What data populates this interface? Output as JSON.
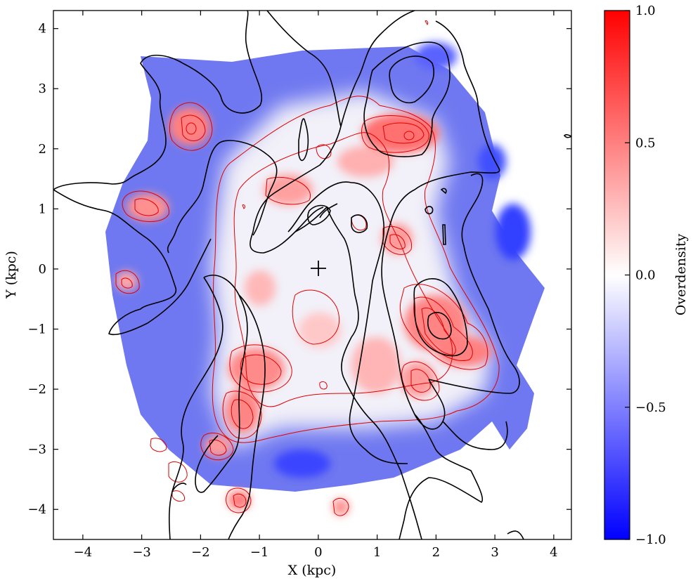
{
  "chart_data": {
    "type": "heatmap",
    "xlabel": "X (kpc)",
    "ylabel": "Y (kpc)",
    "xlim": [
      -4.5,
      4.3
    ],
    "ylim": [
      -4.5,
      4.3
    ],
    "x_ticks": [
      -4,
      -3,
      -2,
      -1,
      0,
      1,
      2,
      3,
      4
    ],
    "y_ticks": [
      -4,
      -3,
      -2,
      -1,
      0,
      1,
      2,
      3,
      4
    ],
    "x_tick_labels": [
      "−4",
      "−3",
      "−2",
      "−1",
      "0",
      "1",
      "2",
      "3",
      "4"
    ],
    "y_tick_labels": [
      "−4",
      "−3",
      "−2",
      "−1",
      "0",
      "1",
      "2",
      "3",
      "4"
    ],
    "colorbar": {
      "label": "Overdensity",
      "range": [
        -1.0,
        1.0
      ],
      "ticks": [
        1.0,
        0.5,
        0.0,
        -0.5,
        -1.0
      ],
      "tick_labels": [
        "1.0",
        "0.5",
        "0.0",
        "−0.5",
        "−1.0"
      ],
      "colors": {
        "low": "#0000ff",
        "mid": "#ffffff",
        "high": "#ff0000"
      }
    },
    "marker": {
      "symbol": "+",
      "x": 0,
      "y": 0
    },
    "contour_colors": {
      "density": "#e00000",
      "overlay": "#000000"
    },
    "overdensity_peaks": [
      {
        "x": 1.5,
        "y": 2.2,
        "value": 0.8
      },
      {
        "x": -2.1,
        "y": 2.35,
        "value": 0.7
      },
      {
        "x": -3.0,
        "y": 1.05,
        "value": 0.55
      },
      {
        "x": -0.5,
        "y": 1.3,
        "value": 0.45
      },
      {
        "x": 1.4,
        "y": 0.5,
        "value": 0.55
      },
      {
        "x": 2.0,
        "y": -1.0,
        "value": 0.75
      },
      {
        "x": 2.4,
        "y": -1.4,
        "value": 0.7
      },
      {
        "x": 1.6,
        "y": -1.8,
        "value": 0.55
      },
      {
        "x": -1.0,
        "y": -1.7,
        "value": 0.65
      },
      {
        "x": -1.3,
        "y": -2.35,
        "value": 0.65
      },
      {
        "x": -1.6,
        "y": -2.95,
        "value": 0.55
      },
      {
        "x": -1.35,
        "y": -3.88,
        "value": 0.7
      },
      {
        "x": 0.35,
        "y": -4.0,
        "value": 0.6
      },
      {
        "x": -3.25,
        "y": -0.25,
        "value": 0.45
      },
      {
        "x": 0.9,
        "y": -1.75,
        "value": 0.45
      },
      {
        "x": -0.9,
        "y": -0.3,
        "value": 0.45
      }
    ]
  }
}
